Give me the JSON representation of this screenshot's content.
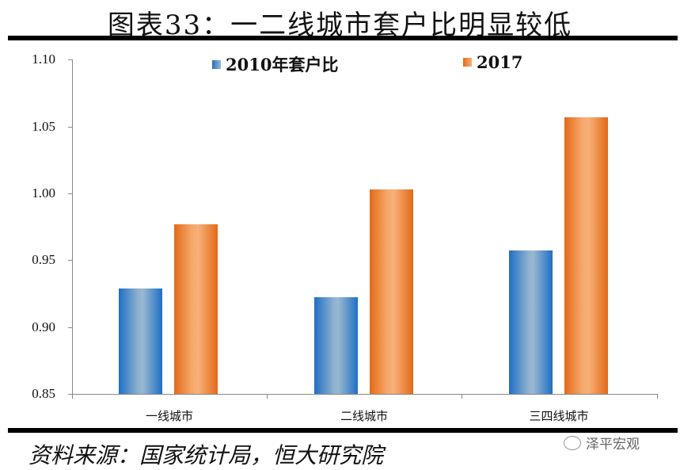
{
  "title": "图表33：一二线城市套户比明显较低",
  "source": "资料来源：国家统计局，恒大研究院",
  "watermark": "泽平宏观",
  "colors": {
    "series_2010": "#1f6fc5",
    "series_2017": "#e36a18"
  },
  "chart_data": {
    "type": "bar",
    "title": "图表33：一二线城市套户比明显较低",
    "categories": [
      "一线城市",
      "二线城市",
      "三四线城市"
    ],
    "series": [
      {
        "name": "2010年套户比",
        "values": [
          0.929,
          0.922,
          0.957
        ]
      },
      {
        "name": "2017",
        "values": [
          0.977,
          1.003,
          1.057
        ]
      }
    ],
    "xlabel": "",
    "ylabel": "",
    "ylim": [
      0.85,
      1.1
    ],
    "yticks": [
      "0.85",
      "0.90",
      "0.95",
      "1.00",
      "1.05",
      "1.10"
    ],
    "legend_position": "top",
    "grid": false
  }
}
